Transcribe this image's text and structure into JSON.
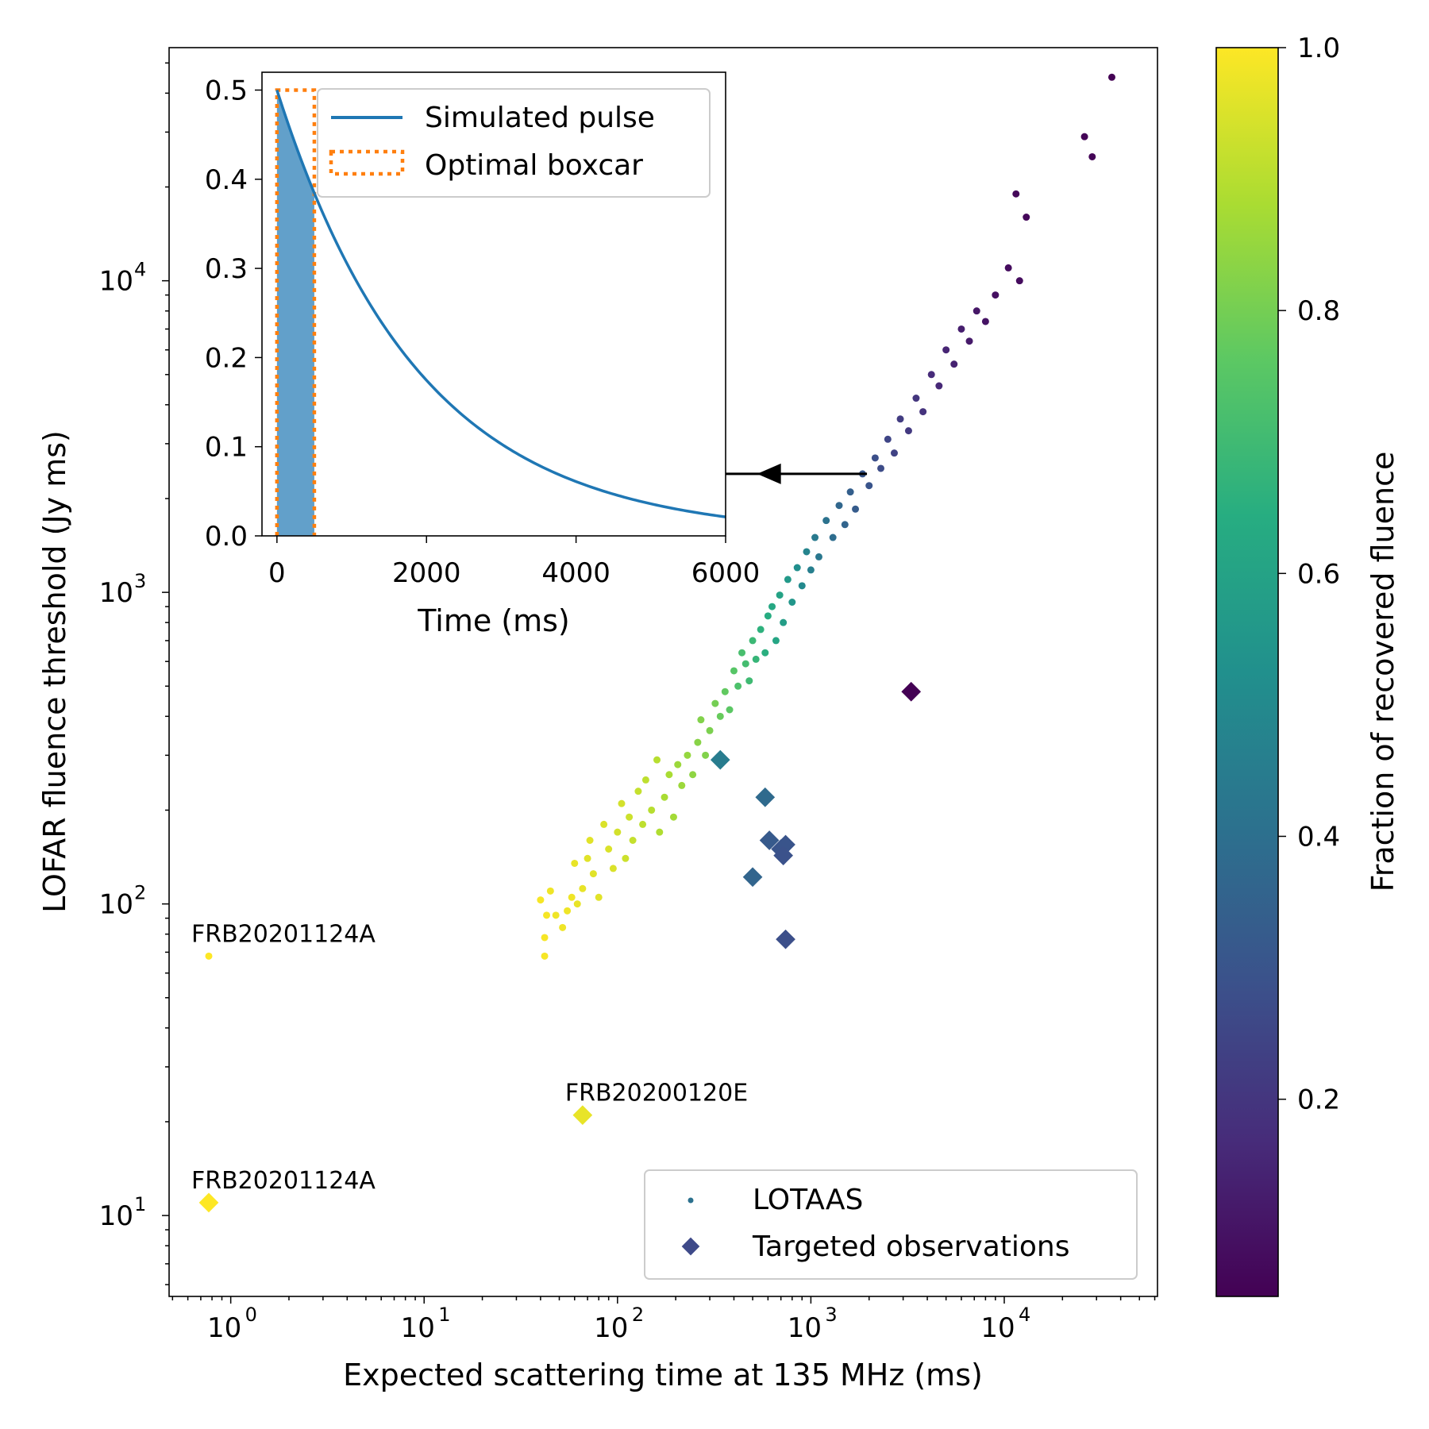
{
  "chart_data": {
    "type": "scatter",
    "xlabel": "Expected scattering time at 135 MHz (ms)",
    "ylabel": "LOFAR fluence threshold (Jy ms)",
    "xscale": "log",
    "yscale": "log",
    "xlim": [
      0.48,
      62000
    ],
    "ylim": [
      5.5,
      56000
    ],
    "x_ticks": [
      {
        "base": "10",
        "exp": "0",
        "value": 1
      },
      {
        "base": "10",
        "exp": "1",
        "value": 10
      },
      {
        "base": "10",
        "exp": "2",
        "value": 100
      },
      {
        "base": "10",
        "exp": "3",
        "value": 1000
      },
      {
        "base": "10",
        "exp": "4",
        "value": 10000
      }
    ],
    "y_ticks": [
      {
        "base": "10",
        "exp": "1",
        "value": 10
      },
      {
        "base": "10",
        "exp": "2",
        "value": 100
      },
      {
        "base": "10",
        "exp": "3",
        "value": 1000
      },
      {
        "base": "10",
        "exp": "4",
        "value": 10000
      }
    ],
    "colorbar": {
      "label": "Fraction of recovered fluence",
      "colormap": "viridis",
      "range": [
        0.05,
        1.0
      ],
      "ticks": [
        "0.2",
        "0.4",
        "0.6",
        "0.8",
        "1.0"
      ]
    },
    "legend": {
      "position": "lower-right",
      "lotaas_label": "LOTAAS",
      "targeted_label": "Targeted observations"
    },
    "series": [
      {
        "name": "LOTAAS",
        "marker": "dot",
        "points": [
          [
            0.77,
            68,
            1.0
          ],
          [
            40,
            103,
            0.99
          ],
          [
            42,
            68,
            0.99
          ],
          [
            42,
            78,
            0.99
          ],
          [
            43,
            92,
            0.99
          ],
          [
            45,
            110,
            0.98
          ],
          [
            48,
            92,
            0.98
          ],
          [
            52,
            84,
            0.98
          ],
          [
            55,
            95,
            0.98
          ],
          [
            58,
            105,
            0.98
          ],
          [
            60,
            135,
            0.97
          ],
          [
            62,
            100,
            0.97
          ],
          [
            66,
            112,
            0.97
          ],
          [
            70,
            140,
            0.96
          ],
          [
            72,
            160,
            0.96
          ],
          [
            75,
            125,
            0.96
          ],
          [
            80,
            105,
            0.96
          ],
          [
            85,
            180,
            0.95
          ],
          [
            90,
            150,
            0.95
          ],
          [
            95,
            130,
            0.95
          ],
          [
            100,
            170,
            0.94
          ],
          [
            105,
            210,
            0.94
          ],
          [
            110,
            140,
            0.93
          ],
          [
            115,
            190,
            0.93
          ],
          [
            120,
            160,
            0.92
          ],
          [
            128,
            230,
            0.92
          ],
          [
            135,
            180,
            0.91
          ],
          [
            140,
            250,
            0.91
          ],
          [
            150,
            200,
            0.9
          ],
          [
            160,
            290,
            0.9
          ],
          [
            165,
            170,
            0.89
          ],
          [
            175,
            220,
            0.88
          ],
          [
            185,
            260,
            0.88
          ],
          [
            195,
            190,
            0.87
          ],
          [
            205,
            280,
            0.86
          ],
          [
            215,
            240,
            0.86
          ],
          [
            230,
            300,
            0.85
          ],
          [
            245,
            260,
            0.84
          ],
          [
            260,
            330,
            0.83
          ],
          [
            270,
            390,
            0.82
          ],
          [
            285,
            300,
            0.82
          ],
          [
            300,
            360,
            0.81
          ],
          [
            320,
            440,
            0.8
          ],
          [
            340,
            400,
            0.78
          ],
          [
            360,
            480,
            0.77
          ],
          [
            380,
            420,
            0.76
          ],
          [
            400,
            560,
            0.75
          ],
          [
            420,
            500,
            0.73
          ],
          [
            440,
            640,
            0.72
          ],
          [
            460,
            590,
            0.71
          ],
          [
            480,
            520,
            0.7
          ],
          [
            500,
            700,
            0.69
          ],
          [
            520,
            610,
            0.68
          ],
          [
            550,
            760,
            0.66
          ],
          [
            580,
            640,
            0.65
          ],
          [
            600,
            840,
            0.64
          ],
          [
            630,
            900,
            0.62
          ],
          [
            660,
            700,
            0.61
          ],
          [
            690,
            980,
            0.6
          ],
          [
            720,
            800,
            0.58
          ],
          [
            760,
            1100,
            0.56
          ],
          [
            800,
            930,
            0.55
          ],
          [
            850,
            1200,
            0.52
          ],
          [
            900,
            1050,
            0.5
          ],
          [
            950,
            1350,
            0.48
          ],
          [
            1000,
            1180,
            0.46
          ],
          [
            1050,
            1500,
            0.44
          ],
          [
            1100,
            1300,
            0.43
          ],
          [
            1200,
            1700,
            0.41
          ],
          [
            1300,
            1500,
            0.39
          ],
          [
            1400,
            1900,
            0.37
          ],
          [
            1500,
            1650,
            0.36
          ],
          [
            1600,
            2100,
            0.34
          ],
          [
            1700,
            1850,
            0.33
          ],
          [
            1850,
            2400,
            0.31
          ],
          [
            2000,
            2200,
            0.3
          ],
          [
            2150,
            2700,
            0.28
          ],
          [
            2300,
            2500,
            0.27
          ],
          [
            2500,
            3100,
            0.25
          ],
          [
            2700,
            2800,
            0.24
          ],
          [
            2900,
            3600,
            0.22
          ],
          [
            3200,
            3300,
            0.21
          ],
          [
            3500,
            4200,
            0.2
          ],
          [
            3800,
            3800,
            0.19
          ],
          [
            4200,
            5000,
            0.17
          ],
          [
            4600,
            4600,
            0.16
          ],
          [
            5000,
            6000,
            0.15
          ],
          [
            5500,
            5400,
            0.14
          ],
          [
            6000,
            7000,
            0.13
          ],
          [
            6600,
            6400,
            0.12
          ],
          [
            7200,
            8000,
            0.11
          ],
          [
            8000,
            7400,
            0.1
          ],
          [
            9000,
            9000,
            0.09
          ],
          [
            10500,
            11000,
            0.08
          ],
          [
            12000,
            10000,
            0.08
          ],
          [
            13000,
            16000,
            0.07
          ],
          [
            11500,
            19000,
            0.07
          ],
          [
            26000,
            29000,
            0.06
          ],
          [
            28500,
            25000,
            0.06
          ],
          [
            36000,
            45000,
            0.05
          ]
        ]
      },
      {
        "name": "Targeted observations",
        "marker": "diamond",
        "points": [
          [
            0.77,
            11,
            1.0
          ],
          [
            66,
            21,
            0.97
          ],
          [
            340,
            290,
            0.45
          ],
          [
            580,
            220,
            0.38
          ],
          [
            610,
            160,
            0.32
          ],
          [
            700,
            150,
            0.3
          ],
          [
            740,
            155,
            0.3
          ],
          [
            720,
            143,
            0.29
          ],
          [
            500,
            122,
            0.36
          ],
          [
            740,
            77,
            0.28
          ],
          [
            3300,
            480,
            0.05
          ]
        ]
      }
    ],
    "annotations": [
      {
        "text": "FRB20201124A",
        "x": 0.77,
        "y": 68
      },
      {
        "text": "FRB20200120E",
        "x": 66,
        "y": 21
      },
      {
        "text": "FRB20201124A",
        "x": 0.77,
        "y": 11
      }
    ],
    "arrow": {
      "from": [
        1950,
        2400
      ],
      "to": [
        700,
        2400
      ]
    },
    "inset": {
      "type": "line",
      "xlabel": "Time (ms)",
      "xlim": [
        -200,
        6000
      ],
      "ylim": [
        0,
        0.52
      ],
      "x_ticks": [
        "0",
        "2000",
        "4000",
        "6000"
      ],
      "y_ticks": [
        "0.0",
        "0.1",
        "0.2",
        "0.3",
        "0.4",
        "0.5"
      ],
      "pulse": {
        "label": "Simulated pulse",
        "peak": 0.5,
        "tau_ms": 1900,
        "color": "#1f77b4"
      },
      "boxcar": {
        "label": "Optimal boxcar",
        "start": 0,
        "end": 500,
        "height": 0.5,
        "color": "#ff7f0e"
      }
    }
  }
}
